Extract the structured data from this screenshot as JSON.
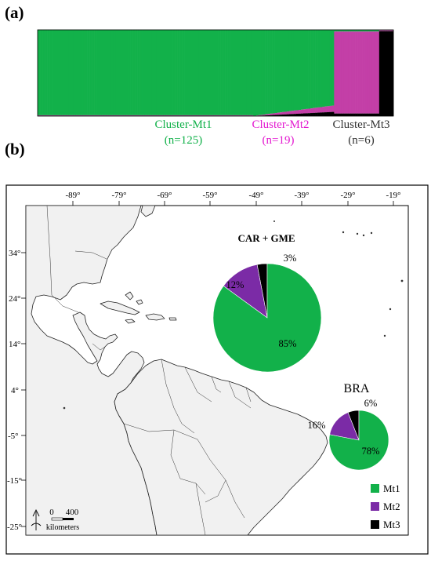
{
  "panel_a": {
    "label": "(a)"
  },
  "panel_b": {
    "label": "(b)"
  },
  "colors": {
    "Mt1": "#12b14a",
    "Mt2": "#c33fa7",
    "Mt3": "#000000",
    "Mt2_pie": "#7b2ba6"
  },
  "chart_data": [
    {
      "type": "bar",
      "subtype": "stacked-membership",
      "series": [
        {
          "name": "Cluster-Mt1",
          "count": "(n=125)",
          "label_color": "#12b14a",
          "n": 125
        },
        {
          "name": "Cluster-Mt2",
          "count": "(n=19)",
          "label_color": "#e31bd0",
          "n": 19
        },
        {
          "name": "Cluster-Mt3",
          "count": "(n=6)",
          "label_color": "#333333",
          "n": 6
        }
      ]
    },
    {
      "type": "pie",
      "title": "CAR + GME",
      "slices": [
        {
          "name": "Mt1",
          "value": 85,
          "label": "85%"
        },
        {
          "name": "Mt2",
          "value": 12,
          "label": "12%"
        },
        {
          "name": "Mt3",
          "value": 3,
          "label": "3%"
        }
      ]
    },
    {
      "type": "pie",
      "title": "BRA",
      "slices": [
        {
          "name": "Mt1",
          "value": 78,
          "label": "78%"
        },
        {
          "name": "Mt2",
          "value": 16,
          "label": "16%"
        },
        {
          "name": "Mt3",
          "value": 6,
          "label": "6%"
        }
      ]
    }
  ],
  "map": {
    "lon_ticks": [
      "-89°",
      "-79°",
      "-69°",
      "-59°",
      "-49°",
      "-39°",
      "-29°",
      "-19°"
    ],
    "lat_ticks": [
      "34°",
      "24°",
      "14°",
      "4°",
      "-5°",
      "-15°",
      "-25°"
    ],
    "scale": {
      "zero": "0",
      "max": "400",
      "unit": "kilometers"
    }
  },
  "legend": [
    "Mt1",
    "Mt2",
    "Mt3"
  ]
}
